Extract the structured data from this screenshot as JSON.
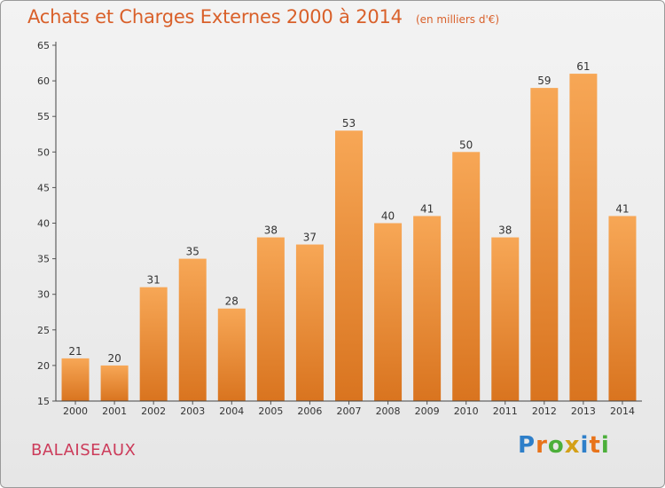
{
  "title": "Achats et Charges Externes 2000 à 2014",
  "unit": "(en milliers d'€)",
  "commune": "BALAISEAUX",
  "logo": {
    "letters": [
      "P",
      "r",
      "o",
      "x",
      "i",
      "t",
      "i"
    ],
    "colors": [
      "#2e7fc9",
      "#e8731a",
      "#4caf3a",
      "#d4a017",
      "#2e7fc9",
      "#e8731a",
      "#4caf3a"
    ]
  },
  "colors": {
    "bar_top": "#f7a756",
    "bar_bottom": "#d9741f",
    "title": "#d9602a",
    "commune": "#cc3b5a"
  },
  "chart_data": {
    "type": "bar",
    "categories": [
      "2000",
      "2001",
      "2002",
      "2003",
      "2004",
      "2005",
      "2006",
      "2007",
      "2008",
      "2009",
      "2010",
      "2011",
      "2012",
      "2013",
      "2014"
    ],
    "values": [
      21,
      20,
      31,
      35,
      28,
      38,
      37,
      53,
      40,
      41,
      50,
      38,
      59,
      61,
      41
    ],
    "ylim": [
      15,
      65
    ],
    "yticks": [
      15,
      20,
      25,
      30,
      35,
      40,
      45,
      50,
      55,
      60,
      65
    ],
    "grid": false
  }
}
